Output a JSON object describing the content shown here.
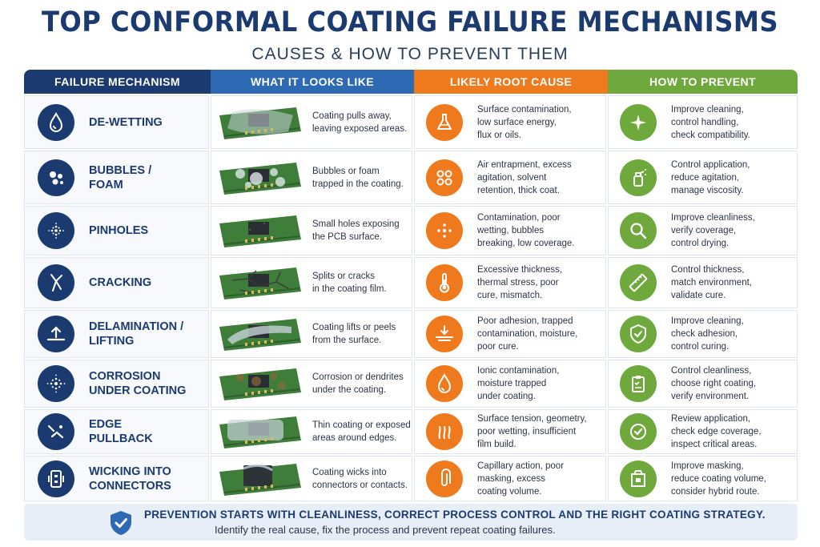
{
  "header": {
    "title": "TOP CONFORMAL COATING FAILURE MECHANISMS",
    "subtitle": "CAUSES & HOW TO PREVENT THEM"
  },
  "columns": [
    "FAILURE MECHANISM",
    "WHAT IT LOOKS LIKE",
    "LIKELY ROOT CAUSE",
    "HOW TO PREVENT"
  ],
  "colors": {
    "navy": "#1b3a70",
    "blue": "#2e69b3",
    "orange": "#ef7a1d",
    "green": "#6fa83c"
  },
  "rows": [
    {
      "mechanism": "DE-WETTING",
      "mech_icon": "drop-icon",
      "looks": "Coating pulls away,\nleaving exposed areas.",
      "cause": "Surface contamination,\nlow surface energy,\nflux or oils.",
      "cause_icon": "flask-icon",
      "prevent": "Improve cleaning,\ncontrol handling,\ncheck compatibility.",
      "prevent_icon": "sparkle-icon"
    },
    {
      "mechanism": "BUBBLES /\nFOAM",
      "mech_icon": "bubbles-icon",
      "looks": "Bubbles or foam\ntrapped in the coating.",
      "cause": "Air entrapment, excess\nagitation, solvent\nretention, thick coat.",
      "cause_icon": "circles-icon",
      "prevent": "Control application,\nreduce agitation,\nmanage viscosity.",
      "prevent_icon": "spray-bottle-icon"
    },
    {
      "mechanism": "PINHOLES",
      "mech_icon": "dots-icon",
      "looks": "Small holes exposing\nthe PCB surface.",
      "cause": "Contamination, poor\nwetting, bubbles\nbreaking, low coverage.",
      "cause_icon": "dot-cluster-icon",
      "prevent": "Improve cleanliness,\nverify coverage,\ncontrol drying.",
      "prevent_icon": "magnifier-icon"
    },
    {
      "mechanism": "CRACKING",
      "mech_icon": "crack-icon",
      "looks": "Splits or cracks\nin the coating film.",
      "cause": "Excessive thickness,\nthermal stress, poor\ncure, mismatch.",
      "cause_icon": "thermometer-icon",
      "prevent": "Control thickness,\nmatch environment,\nvalidate cure.",
      "prevent_icon": "ruler-icon"
    },
    {
      "mechanism": "DELAMINATION /\nLIFTING",
      "mech_icon": "lift-arrow-icon",
      "looks": "Coating lifts or peels\nfrom the surface.",
      "cause": "Poor adhesion, trapped\ncontamination, moisture,\npoor cure.",
      "cause_icon": "splash-icon",
      "prevent": "Improve cleaning,\ncheck adhesion,\ncontrol curing.",
      "prevent_icon": "shield-check-icon"
    },
    {
      "mechanism": "CORROSION\nUNDER COATING",
      "mech_icon": "dots-ring-icon",
      "looks": "Corrosion or dendrites\nunder the coating.",
      "cause": "Ionic contamination,\nmoisture trapped\nunder coating.",
      "cause_icon": "water-drop-icon",
      "prevent": "Control cleanliness,\nchoose right coating,\nverify environment.",
      "prevent_icon": "clipboard-icon"
    },
    {
      "mechanism": "EDGE\nPULLBACK",
      "mech_icon": "edge-icon",
      "looks": "Thin coating or exposed\nareas around edges.",
      "cause": "Surface tension, geometry,\npoor wetting, insufficient\nfilm build.",
      "cause_icon": "heat-waves-icon",
      "prevent": "Review application,\ncheck edge coverage,\ninspect critical areas.",
      "prevent_icon": "check-circle-icon"
    },
    {
      "mechanism": "WICKING INTO\nCONNECTORS",
      "mech_icon": "connector-icon",
      "looks": "Coating wicks into\nconnectors or contacts.",
      "cause": "Capillary action, poor\nmasking, excess\ncoating volume.",
      "cause_icon": "paperclip-icon",
      "prevent": "Improve masking,\nreduce coating volume,\nconsider hybrid route.",
      "prevent_icon": "mask-box-icon"
    }
  ],
  "footer": {
    "line1": "PREVENTION STARTS WITH CLEANLINESS, CORRECT PROCESS CONTROL AND THE RIGHT COATING STRATEGY.",
    "line2": "Identify the real cause, fix the process and prevent repeat coating failures.",
    "icon": "shield-check-icon"
  }
}
